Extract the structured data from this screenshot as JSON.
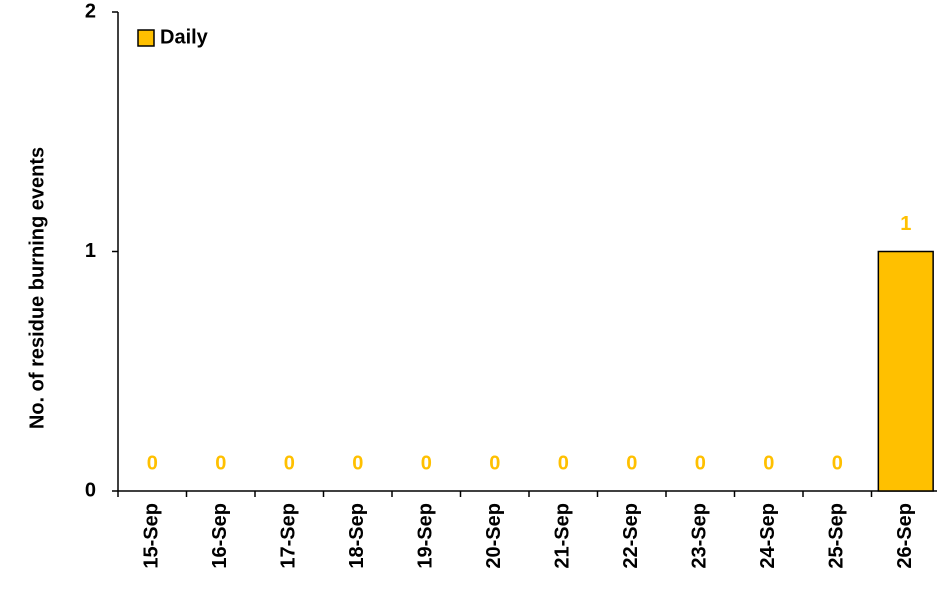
{
  "chart_data": {
    "type": "bar",
    "y_label": "No. of residue burning events",
    "categories": [
      "15-Sep",
      "16-Sep",
      "17-Sep",
      "18-Sep",
      "19-Sep",
      "20-Sep",
      "21-Sep",
      "22-Sep",
      "23-Sep",
      "24-Sep",
      "25-Sep",
      "26-Sep"
    ],
    "series": [
      {
        "name": "Daily",
        "color": "#ffc000",
        "values": [
          0,
          0,
          0,
          0,
          0,
          0,
          0,
          0,
          0,
          0,
          0,
          1
        ]
      }
    ],
    "ylim": [
      0,
      2
    ],
    "yticks": [
      0,
      1,
      2
    ],
    "legend": "upper left",
    "data_labels": true
  }
}
